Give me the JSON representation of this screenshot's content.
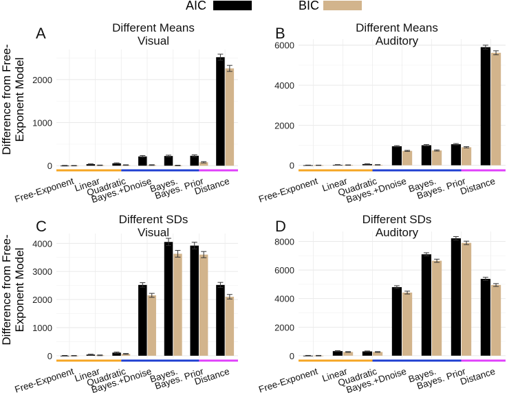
{
  "legend": {
    "entries": [
      {
        "label": "AIC",
        "color": "#000000"
      },
      {
        "label": "BIC",
        "color": "#d2b48c"
      }
    ],
    "position": "top-center"
  },
  "ylabel": "Difference from Free-Exponent Model",
  "ylabel_lines": [
    "Difference from Free-",
    "Exponent Model"
  ],
  "group_colors": {
    "free_exponent": "#f5a623",
    "bayes": "#1f3fd1",
    "distance": "#e040fb"
  },
  "chart_data": [
    {
      "type": "bar",
      "panel_letter": "A",
      "title": "Different Means",
      "subtitle": "Visual",
      "categories": [
        "Free-Exponent",
        "Linear",
        "Quadratic",
        "Bayes.+Dnoise",
        "Bayes.",
        "Bayes. Prior",
        "Distance"
      ],
      "series": [
        {
          "name": "AIC",
          "values": [
            0,
            35,
            55,
            215,
            225,
            230,
            2520
          ],
          "errors": [
            8,
            8,
            10,
            20,
            20,
            22,
            70
          ]
        },
        {
          "name": "BIC",
          "values": [
            0,
            10,
            15,
            15,
            5,
            80,
            2260
          ],
          "errors": [
            5,
            5,
            6,
            8,
            6,
            15,
            70
          ]
        }
      ],
      "yticks": [
        0,
        1000,
        2000
      ],
      "ylim": [
        -60,
        2700
      ]
    },
    {
      "type": "bar",
      "panel_letter": "B",
      "title": "Different Means",
      "subtitle": "Auditory",
      "categories": [
        "Free-Exponent",
        "Linear",
        "Quadratic",
        "Bayes.+Dnoise",
        "Bayes.",
        "Bayes. Prior",
        "Distance"
      ],
      "series": [
        {
          "name": "AIC",
          "values": [
            0,
            20,
            60,
            950,
            1000,
            1050,
            5900
          ],
          "errors": [
            10,
            12,
            15,
            30,
            35,
            35,
            100
          ]
        },
        {
          "name": "BIC",
          "values": [
            0,
            10,
            20,
            720,
            740,
            900,
            5620
          ],
          "errors": [
            8,
            10,
            12,
            25,
            30,
            30,
            100
          ]
        }
      ],
      "yticks": [
        0,
        2000,
        4000,
        6000
      ],
      "ylim": [
        -150,
        6300
      ]
    },
    {
      "type": "bar",
      "panel_letter": "C",
      "title": "Different SDs",
      "subtitle": "Visual",
      "categories": [
        "Free-Exponent",
        "Linear",
        "Quadratic",
        "Bayes.+Dnoise",
        "Bayes.",
        "Bayes. Prior",
        "Distance"
      ],
      "series": [
        {
          "name": "AIC",
          "values": [
            0,
            40,
            110,
            2520,
            4050,
            3920,
            2520
          ],
          "errors": [
            10,
            15,
            20,
            80,
            130,
            120,
            90
          ]
        },
        {
          "name": "BIC",
          "values": [
            0,
            15,
            65,
            2150,
            3630,
            3600,
            2100
          ],
          "errors": [
            8,
            12,
            15,
            70,
            120,
            110,
            80
          ]
        }
      ],
      "yticks": [
        0,
        1000,
        2000,
        3000,
        4000
      ],
      "ylim": [
        -100,
        4350
      ]
    },
    {
      "type": "bar",
      "panel_letter": "D",
      "title": "Different SDs",
      "subtitle": "Auditory",
      "categories": [
        "Free-Exponent",
        "Linear",
        "Quadratic",
        "Bayes.+Dnoise",
        "Bayes.",
        "Bayes. Prior",
        "Distance"
      ],
      "series": [
        {
          "name": "AIC",
          "values": [
            0,
            320,
            300,
            4800,
            7100,
            8220,
            5380
          ],
          "errors": [
            20,
            30,
            30,
            100,
            110,
            120,
            110
          ]
        },
        {
          "name": "BIC",
          "values": [
            0,
            260,
            260,
            4420,
            6650,
            7900,
            4950
          ],
          "errors": [
            20,
            25,
            25,
            100,
            110,
            120,
            100
          ]
        }
      ],
      "yticks": [
        0,
        2000,
        4000,
        6000,
        8000
      ],
      "ylim": [
        -200,
        8700
      ]
    }
  ]
}
